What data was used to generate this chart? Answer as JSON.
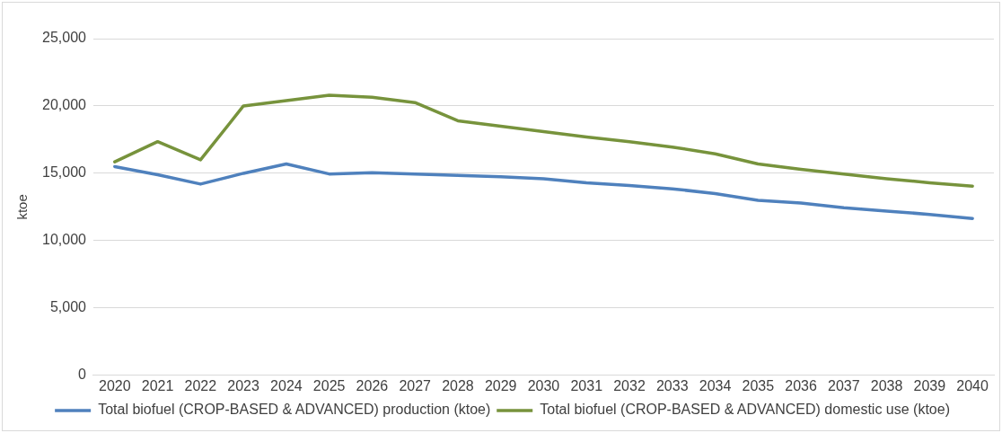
{
  "chart_data": {
    "type": "line",
    "ylabel": "ktoe",
    "categories": [
      "2020",
      "2021",
      "2022",
      "2023",
      "2024",
      "2025",
      "2026",
      "2027",
      "2028",
      "2029",
      "2030",
      "2031",
      "2032",
      "2033",
      "2034",
      "2035",
      "2036",
      "2037",
      "2038",
      "2039",
      "2040"
    ],
    "series": [
      {
        "name": "Total biofuel (CROP-BASED & ADVANCED) production (ktoe)",
        "color": "#4f81bd",
        "values": [
          15500,
          14900,
          14200,
          15000,
          15700,
          14950,
          15050,
          14950,
          14850,
          14750,
          14600,
          14300,
          14100,
          13850,
          13500,
          13000,
          12800,
          12450,
          12200,
          11950,
          11650
        ]
      },
      {
        "name": "Total biofuel (CROP-BASED & ADVANCED) domestic use (ktoe)",
        "color": "#77933c",
        "values": [
          15850,
          17350,
          16000,
          20000,
          20400,
          20800,
          20650,
          20250,
          18900,
          18500,
          18100,
          17700,
          17350,
          16950,
          16450,
          15700,
          15300,
          14950,
          14600,
          14300,
          14050
        ]
      }
    ],
    "ylim": [
      0,
      25000
    ],
    "yticks": [
      {
        "value": 0,
        "label": "0"
      },
      {
        "value": 5000,
        "label": "5,000"
      },
      {
        "value": 10000,
        "label": "10,000"
      },
      {
        "value": 15000,
        "label": "15,000"
      },
      {
        "value": 20000,
        "label": "20,000"
      },
      {
        "value": 25000,
        "label": "25,000"
      }
    ],
    "grid": "y",
    "legend": "bottom",
    "marker": "none",
    "line_style": "solid"
  }
}
